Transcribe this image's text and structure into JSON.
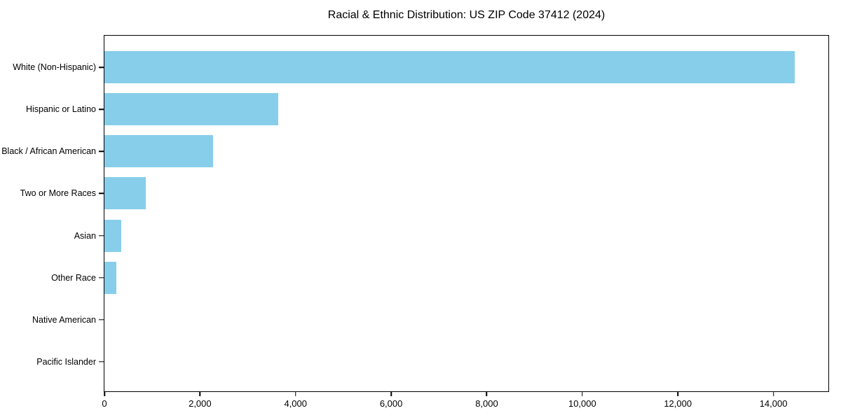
{
  "figure": {
    "title": "Racial & Ethnic Distribution: US ZIP Code 37412 (2024)"
  },
  "chart_data": {
    "type": "bar",
    "orientation": "horizontal",
    "title": "Racial & Ethnic Distribution: US ZIP Code 37412 (2024)",
    "categories": [
      "White (Non-Hispanic)",
      "Hispanic or Latino",
      "Black / African American",
      "Two or More Races",
      "Asian",
      "Other Race",
      "Native American",
      "Pacific Islander"
    ],
    "values": [
      14450,
      3640,
      2280,
      860,
      350,
      255,
      0,
      0
    ],
    "xlabel": "",
    "ylabel": "",
    "xlim": [
      0,
      15150
    ],
    "x_ticks": [
      0,
      2000,
      4000,
      6000,
      8000,
      10000,
      12000,
      14000
    ],
    "x_tick_labels": [
      "0",
      "2,000",
      "4,000",
      "6,000",
      "8,000",
      "10,000",
      "12,000",
      "14,000"
    ],
    "bar_color": "#87CEEB",
    "axis_color": "#000000",
    "text_color": "#000000",
    "background": "#FFFFFF",
    "grid": false,
    "legend": null
  }
}
